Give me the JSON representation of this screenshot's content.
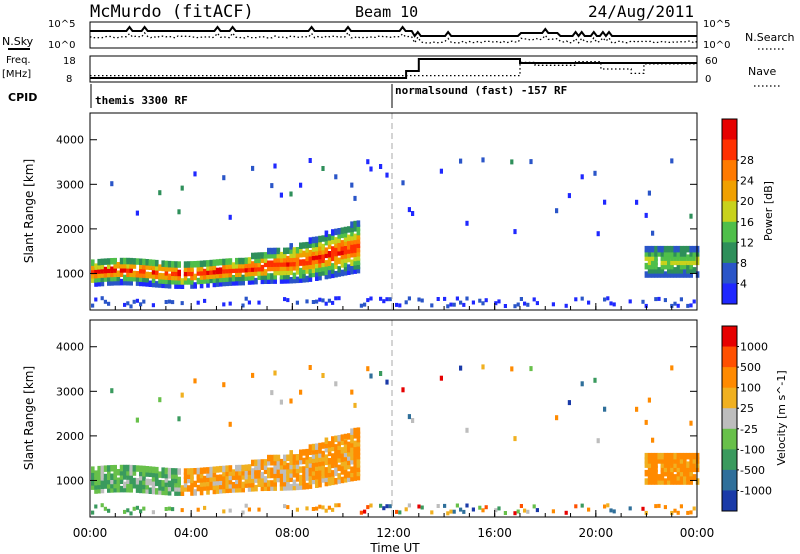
{
  "header": {
    "station": "McMurdo (fitACF)",
    "beam": "Beam 10",
    "date": "24/Aug/2011"
  },
  "noise_panel": {
    "left_label": "N.Sky",
    "right_label": "N.Search",
    "left_ticks": [
      "10^5",
      "10^0"
    ],
    "right_ticks": [
      "10^5",
      "10^0"
    ]
  },
  "freq_panel": {
    "left_label_1": "Freq.",
    "left_label_2": "[MHz]",
    "right_label": "Nave",
    "left_ticks": [
      "18",
      "8"
    ],
    "right_ticks": [
      "60",
      "0"
    ],
    "freq_steps": [
      [
        0,
        8.5
      ],
      [
        12.5,
        8.5
      ],
      [
        12.5,
        12
      ],
      [
        13.0,
        12
      ],
      [
        13.0,
        18
      ],
      [
        17.0,
        18
      ],
      [
        17.0,
        16
      ],
      [
        24,
        16
      ]
    ],
    "nave_steps": [
      [
        0,
        12
      ],
      [
        17.0,
        12
      ],
      [
        17.0,
        48
      ],
      [
        17.6,
        48
      ],
      [
        17.6,
        40
      ],
      [
        19.2,
        40
      ],
      [
        19.2,
        50
      ],
      [
        20.2,
        50
      ],
      [
        20.2,
        30
      ],
      [
        21.4,
        30
      ],
      [
        21.4,
        18
      ],
      [
        21.9,
        18
      ],
      [
        21.9,
        44
      ],
      [
        24,
        44
      ]
    ]
  },
  "cpid": {
    "label": "CPID",
    "segments": [
      {
        "start": 0,
        "text": "themis 3300 RF"
      },
      {
        "start": 12,
        "text": "normalsound (fast) -157 RF"
      }
    ]
  },
  "chart_data": [
    {
      "type": "heatmap",
      "name": "power",
      "ylabel": "Slant Range [km]",
      "yticks": [
        1000,
        2000,
        3000,
        4000
      ],
      "ylim": [
        180,
        4600
      ],
      "colorbar_label": "Power [dB]",
      "colorbar_ticks": [
        "4",
        "8",
        "12",
        "16",
        "20",
        "24",
        "28"
      ],
      "colorbar_colors": [
        "#1f28ff",
        "#2a55c8",
        "#2e8f5a",
        "#4fbf4a",
        "#c8d21c",
        "#f0a000",
        "#ff7a00",
        "#ff3000",
        "#e60000"
      ]
    },
    {
      "type": "heatmap",
      "name": "velocity",
      "ylabel": "Slant Range [km]",
      "yticks": [
        1000,
        2000,
        3000,
        4000
      ],
      "ylim": [
        180,
        4600
      ],
      "colorbar_label": "Velocity [m s^-1]",
      "colorbar_ticks": [
        "1000",
        "500",
        "100",
        "25",
        "-25",
        "-100",
        "-500",
        "-1000"
      ],
      "colorbar_colors": [
        "#1a3aa8",
        "#2f6f9a",
        "#3a9a5e",
        "#68c04a",
        "#bdbdbd",
        "#f0b020",
        "#ff8a00",
        "#ff5000",
        "#e60000"
      ]
    }
  ],
  "time_axis": {
    "xlabel": "Time UT",
    "xlim_hours": [
      0,
      24
    ],
    "ticks": [
      "00:00",
      "04:00",
      "08:00",
      "12:00",
      "16:00",
      "20:00",
      "00:00"
    ]
  }
}
